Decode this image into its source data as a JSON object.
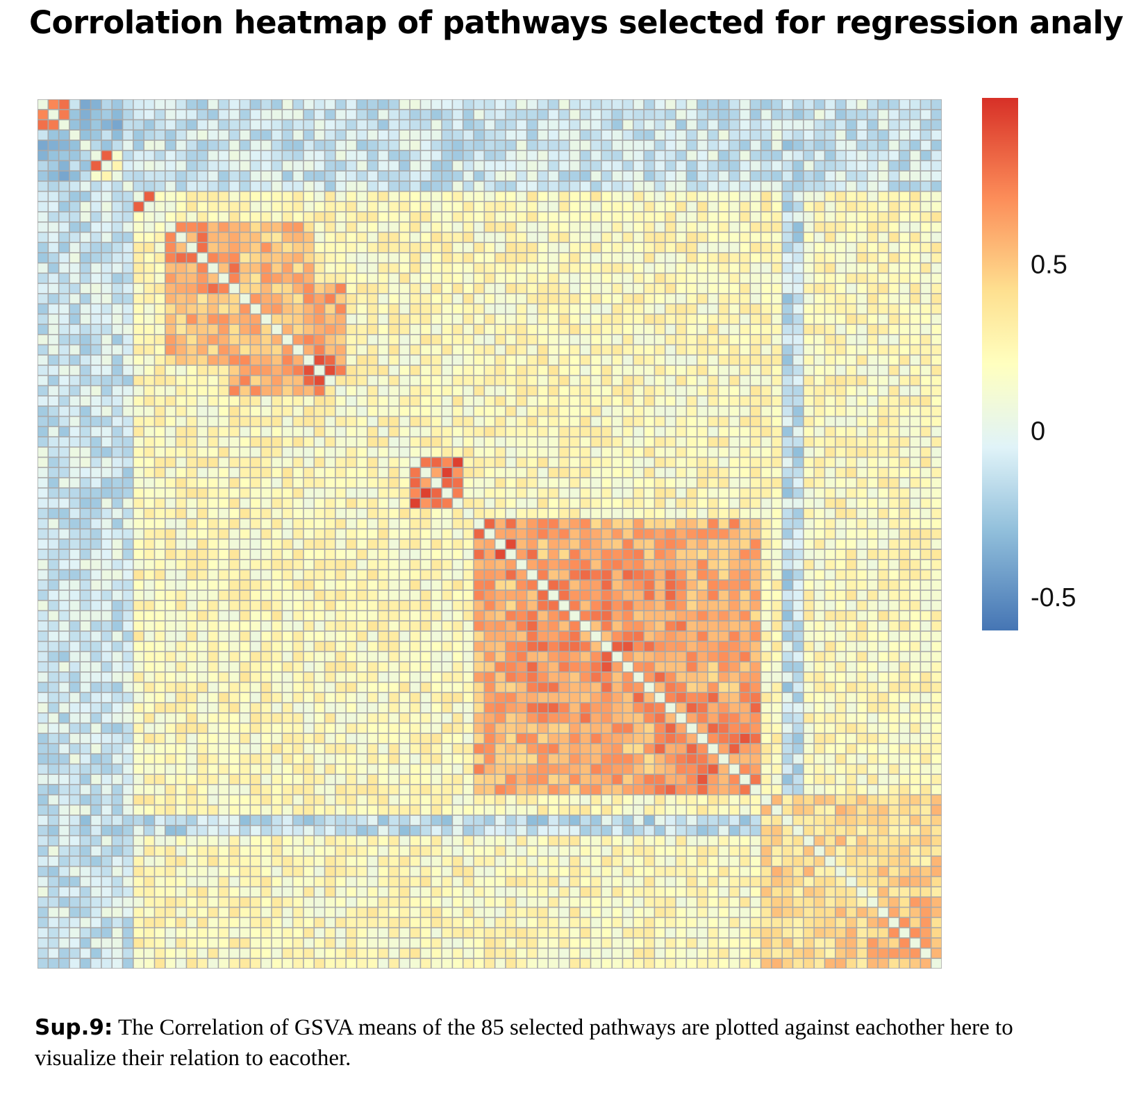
{
  "title": "Corrolation heatmap of pathways selected for regression analysis",
  "caption": {
    "label": "Sup.9:",
    "text": " The Correlation of GSVA means of the 85 selected pathways are plotted against  eachother here to visualize their relation to eacother."
  },
  "chart_data": {
    "type": "heatmap",
    "n": 85,
    "value_range": [
      -0.6,
      1
    ],
    "legend": {
      "position": "right",
      "ticks": [
        {
          "value": 0.5,
          "label": "0.5"
        },
        {
          "value": 0,
          "label": "0"
        },
        {
          "value": -0.5,
          "label": "-0.5"
        }
      ],
      "colors": [
        "#4575b4",
        "#91bfdb",
        "#e0f3f8",
        "#ffffbf",
        "#fee090",
        "#fc8d59",
        "#d73027"
      ],
      "color_stops": [
        -0.6,
        -0.3,
        -0.05,
        0.2,
        0.42,
        0.7,
        1.0
      ]
    },
    "diagonal_value": 0.05,
    "blocks": [
      {
        "rows": [
          0,
          2
        ],
        "cols": [
          0,
          2
        ],
        "value": 0.68
      },
      {
        "rows": [
          5,
          6
        ],
        "cols": [
          5,
          6
        ],
        "value": 0.82
      },
      {
        "rows": [
          9,
          10
        ],
        "cols": [
          9,
          10
        ],
        "value": 0.78
      },
      {
        "rows": [
          12,
          25
        ],
        "cols": [
          12,
          25
        ],
        "value": 0.52
      },
      {
        "rows": [
          12,
          18
        ],
        "cols": [
          12,
          18
        ],
        "value": 0.66
      },
      {
        "rows": [
          18,
          26
        ],
        "cols": [
          25,
          28
        ],
        "value": 0.6
      },
      {
        "rows": [
          25,
          27
        ],
        "cols": [
          25,
          27
        ],
        "value": 0.82
      },
      {
        "rows": [
          35,
          39
        ],
        "cols": [
          35,
          39
        ],
        "value": 0.7
      },
      {
        "rows": [
          41,
          67
        ],
        "cols": [
          41,
          67
        ],
        "value": 0.58
      },
      {
        "rows": [
          41,
          46
        ],
        "cols": [
          41,
          46
        ],
        "value": 0.68
      },
      {
        "rows": [
          46,
          60
        ],
        "cols": [
          48,
          60
        ],
        "value": 0.66
      },
      {
        "rows": [
          58,
          67
        ],
        "cols": [
          58,
          67
        ],
        "value": 0.68
      },
      {
        "rows": [
          68,
          84
        ],
        "cols": [
          68,
          84
        ],
        "value": 0.42
      },
      {
        "rows": [
          78,
          84
        ],
        "cols": [
          78,
          84
        ],
        "value": 0.55
      }
    ],
    "bands": [
      {
        "rows": [
          0,
          84
        ],
        "cols": [
          0,
          4
        ],
        "value": -0.25
      },
      {
        "rows": [
          41,
          84
        ],
        "cols": [
          0,
          2
        ],
        "value": -0.45
      },
      {
        "rows": [
          0,
          2
        ],
        "cols": [
          41,
          84
        ],
        "value": -0.4
      },
      {
        "rows": [
          0,
          8
        ],
        "cols": [
          8,
          84
        ],
        "value": -0.1
      },
      {
        "rows": [
          0,
          84
        ],
        "cols": [
          70,
          71
        ],
        "value": -0.15
      }
    ],
    "strong_cells": [
      {
        "row": 0,
        "col": 1,
        "value": 0.72
      },
      {
        "row": 5,
        "col": 6,
        "value": 0.85
      },
      {
        "row": 9,
        "col": 10,
        "value": 0.85
      },
      {
        "row": 26,
        "col": 25,
        "value": 0.9
      },
      {
        "row": 35,
        "col": 39,
        "value": 0.95
      },
      {
        "row": 38,
        "col": 36,
        "value": 0.95
      },
      {
        "row": 43,
        "col": 44,
        "value": 0.95
      },
      {
        "row": 44,
        "col": 43,
        "value": 0.92
      },
      {
        "row": 53,
        "col": 55,
        "value": 0.88
      },
      {
        "row": 54,
        "col": 53,
        "value": 0.85
      },
      {
        "row": 62,
        "col": 66,
        "value": 0.88
      },
      {
        "row": 63,
        "col": 65,
        "value": 0.85
      }
    ]
  }
}
